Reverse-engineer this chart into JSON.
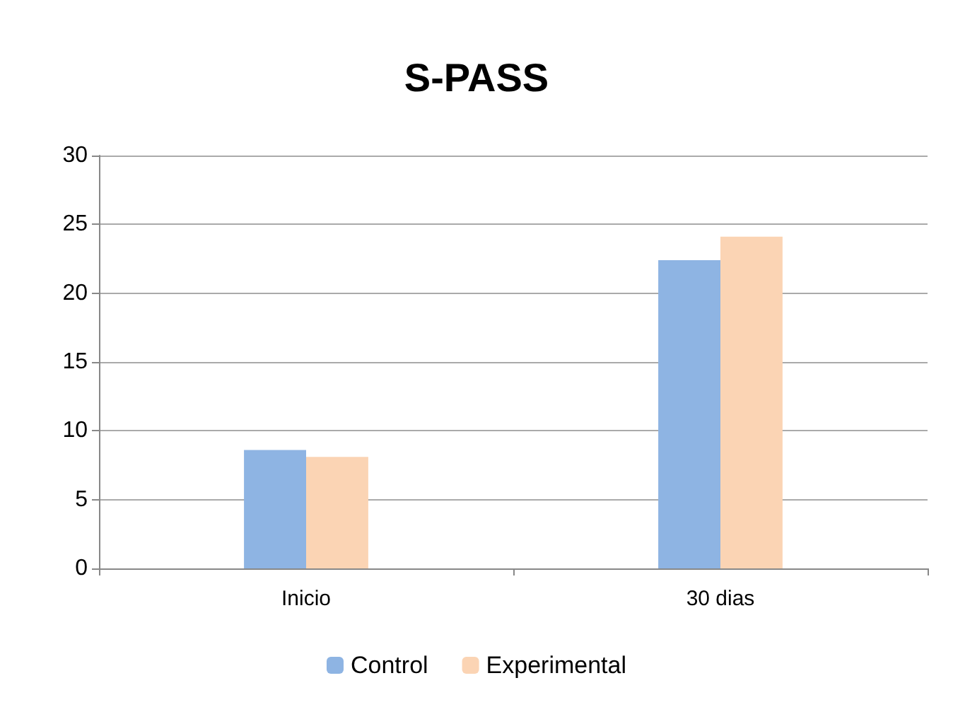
{
  "chart_data": {
    "type": "bar",
    "title": "S-PASS",
    "categories": [
      "Inicio",
      "30 dias"
    ],
    "series": [
      {
        "name": "Control",
        "color": "#8eb4e3",
        "values": [
          8.6,
          22.4
        ]
      },
      {
        "name": "Experimental",
        "color": "#fbd4b4",
        "values": [
          8.1,
          24.1
        ]
      }
    ],
    "ylim": [
      0,
      30
    ],
    "yticks": [
      0,
      5,
      10,
      15,
      20,
      25,
      30
    ],
    "grid": "y",
    "legend": "bottom"
  }
}
